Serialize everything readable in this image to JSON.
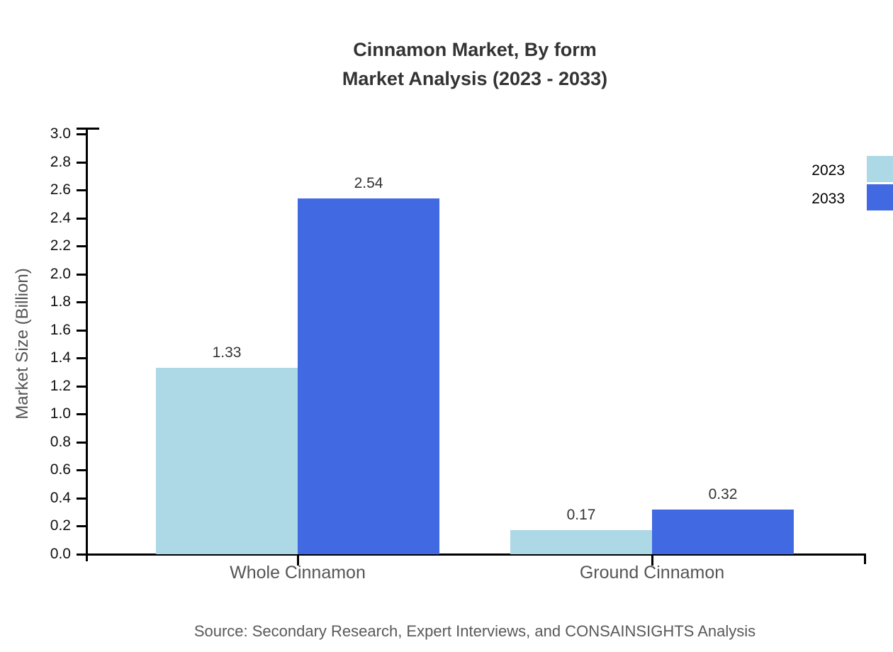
{
  "header": {
    "title_line1": "Cinnamon Market, By form",
    "title_line2": "Market Analysis (2023 - 2033)"
  },
  "chart_data": {
    "type": "bar",
    "title": "Cinnamon Market, By form Market Analysis (2023 - 2033)",
    "title_lines": [
      "Cinnamon Market, By form",
      "Market Analysis (2023 - 2033)"
    ],
    "categories": [
      "Whole Cinnamon",
      "Ground Cinnamon"
    ],
    "series": [
      {
        "name": "2023",
        "color": "#ADD8E6",
        "values": [
          1.33,
          0.17
        ],
        "labels": [
          "1.33",
          "0.17"
        ]
      },
      {
        "name": "2033",
        "color": "#4169E1",
        "values": [
          2.54,
          0.32
        ],
        "labels": [
          "2.54",
          "0.32"
        ]
      }
    ],
    "xlabel": "",
    "ylabel": "Market Size (Billion)",
    "ylim": [
      0.0,
      3.0
    ],
    "ytick_step": 0.2,
    "yticks": [
      "0.0",
      "0.2",
      "0.4",
      "0.6",
      "0.8",
      "1.0",
      "1.2",
      "1.4",
      "1.6",
      "1.8",
      "2.0",
      "2.2",
      "2.4",
      "2.6",
      "2.8",
      "3.0"
    ],
    "grid": false,
    "legend_position": "top-right"
  },
  "footer": {
    "source": "Source: Secondary Research, Expert Interviews, and CONSAINSIGHTS Analysis"
  }
}
